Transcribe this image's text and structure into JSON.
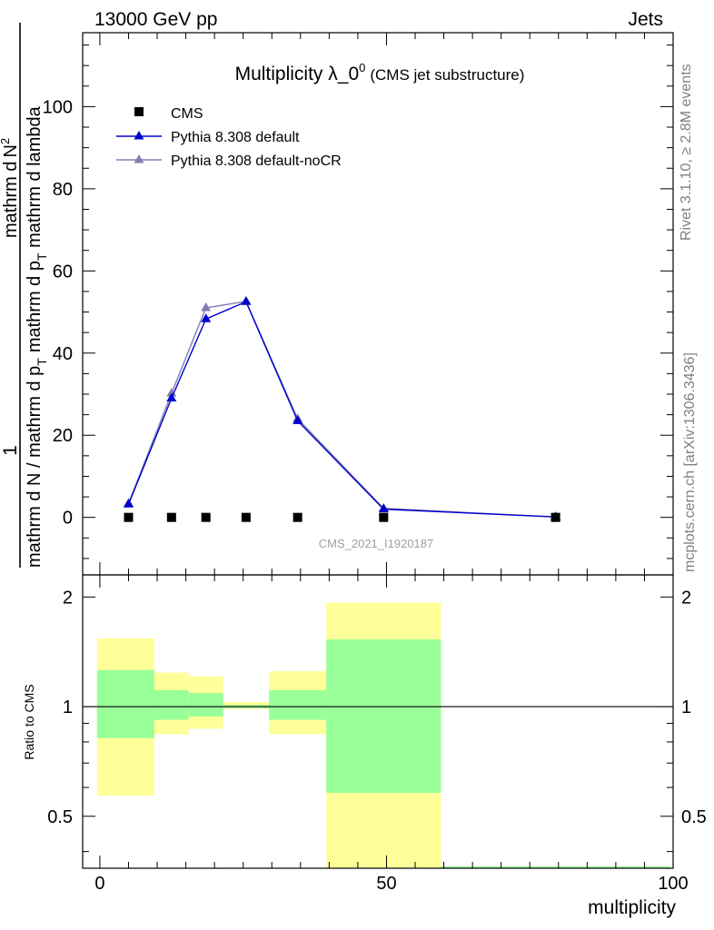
{
  "header": {
    "left": "13000 GeV pp",
    "right": "Jets"
  },
  "side": {
    "rivet": "Rivet 3.1.10, ≥ 2.8M events",
    "source": "mcplots.cern.ch [arXiv:1306.3436]"
  },
  "chart_data": {
    "type": "scatter",
    "title": "Multiplicity λ_0",
    "title_sup": "0",
    "subtitle": "(CMS jet substructure)",
    "watermark": "CMS_2021_I1920187",
    "xlabel": "multiplicity",
    "xlim": [
      -3,
      100
    ],
    "xticks": [
      0,
      50,
      100
    ],
    "main": {
      "ylim": [
        -14,
        118
      ],
      "yticks": [
        0,
        20,
        40,
        60,
        80,
        100
      ],
      "ylabel_parts": {
        "one": "1",
        "den": "mathrm d N / mathrm d p",
        "den_sub": "T",
        "num_a": "mathrm d",
        "num_b": "N",
        "num_sup": "2",
        "num_c": "mathrm d p",
        "num_sub": "T",
        "num_d": " mathrm d lambda"
      }
    },
    "legend": [
      "CMS",
      "Pythia 8.308 default",
      "Pythia 8.308 default-noCR"
    ],
    "colors": {
      "cms": "#000000",
      "default": "#0000cc",
      "noCR": "#7f7fb3",
      "band_inner": "#99ff99",
      "band_outer": "#ffff99"
    },
    "data": {
      "name": "CMS",
      "x": [
        5,
        12.5,
        18.5,
        25.5,
        34.5,
        49.5,
        79.5
      ],
      "y": [
        0,
        0,
        0,
        0,
        0,
        0,
        0
      ]
    },
    "series": [
      {
        "name": "Pythia 8.308 default",
        "x": [
          5,
          12.5,
          18.5,
          25.5,
          34.5,
          49.5,
          79.5
        ],
        "y": [
          3.2,
          29.0,
          48.3,
          52.5,
          23.5,
          2.0,
          0.1
        ]
      },
      {
        "name": "Pythia 8.308 default-noCR",
        "x": [
          5,
          12.5,
          18.5,
          25.5,
          34.5,
          49.5,
          79.5
        ],
        "y": [
          3.4,
          30.2,
          51.0,
          52.6,
          24.0,
          2.2,
          0.1
        ]
      }
    ],
    "ratio": {
      "ylabel": "Ratio to CMS",
      "ylim": [
        0.36,
        2.3
      ],
      "yticks": [
        0.5,
        1,
        2
      ],
      "bands": [
        {
          "xlo": -0.5,
          "xhi": 9.5,
          "inner": [
            0.82,
            1.26
          ],
          "outer": [
            0.57,
            1.54
          ]
        },
        {
          "xlo": 9.5,
          "xhi": 15.5,
          "inner": [
            0.92,
            1.11
          ],
          "outer": [
            0.84,
            1.24
          ]
        },
        {
          "xlo": 15.5,
          "xhi": 21.5,
          "inner": [
            0.94,
            1.09
          ],
          "outer": [
            0.87,
            1.21
          ]
        },
        {
          "xlo": 21.5,
          "xhi": 29.5,
          "inner": [
            0.99,
            1.01
          ],
          "outer": [
            0.985,
            1.03
          ]
        },
        {
          "xlo": 29.5,
          "xhi": 39.5,
          "inner": [
            0.92,
            1.11
          ],
          "outer": [
            0.84,
            1.25
          ]
        },
        {
          "xlo": 39.5,
          "xhi": 59.5,
          "inner": [
            0.58,
            1.53
          ],
          "outer": [
            0.3,
            1.93
          ]
        },
        {
          "xlo": 59.5,
          "xhi": 99.5,
          "inner": [
            0.0,
            0.0
          ],
          "outer": [
            0.0,
            0.0
          ]
        }
      ]
    }
  }
}
